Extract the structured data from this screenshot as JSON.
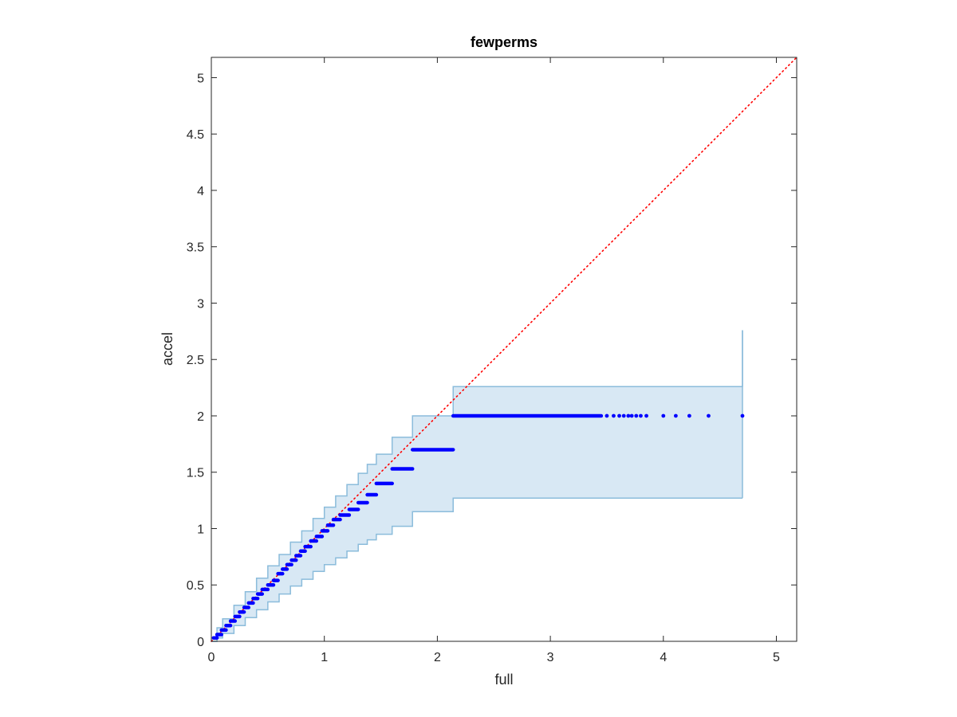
{
  "chart_data": {
    "type": "scatter",
    "title": "fewperms",
    "xlabel": "full",
    "ylabel": "accel",
    "xlim": [
      0,
      5.18
    ],
    "ylim": [
      0,
      5.18
    ],
    "xticks": [
      0,
      1,
      2,
      3,
      4,
      5
    ],
    "xtick_labels": [
      "0",
      "1",
      "2",
      "3",
      "4",
      "5"
    ],
    "yticks": [
      0,
      0.5,
      1,
      1.5,
      2,
      2.5,
      3,
      3.5,
      4,
      4.5,
      5
    ],
    "ytick_labels": [
      "0",
      "0.5",
      "1",
      "1.5",
      "2",
      "2.5",
      "3",
      "3.5",
      "4",
      "4.5",
      "5"
    ],
    "grid": false,
    "reference_line": {
      "type": "identity",
      "style": "dotted",
      "color": "#ff0000"
    },
    "band": {
      "fill": "#d8e8f4",
      "stroke": "#8bbcdb",
      "x": [
        0,
        0.05,
        0.1,
        0.2,
        0.3,
        0.4,
        0.5,
        0.6,
        0.7,
        0.8,
        0.9,
        1.0,
        1.1,
        1.2,
        1.3,
        1.38,
        1.46,
        1.6,
        1.78,
        2.14,
        4.7
      ],
      "upper": [
        0,
        0.12,
        0.2,
        0.32,
        0.44,
        0.56,
        0.67,
        0.77,
        0.88,
        0.98,
        1.09,
        1.19,
        1.29,
        1.39,
        1.49,
        1.57,
        1.66,
        1.81,
        2.0,
        2.26,
        2.76
      ],
      "lower": [
        0,
        0.03,
        0.07,
        0.14,
        0.21,
        0.28,
        0.35,
        0.42,
        0.49,
        0.55,
        0.62,
        0.68,
        0.74,
        0.8,
        0.86,
        0.9,
        0.95,
        1.02,
        1.15,
        1.27,
        1.27
      ]
    },
    "series": [
      {
        "color": "#0000ff",
        "segments": [
          {
            "x_from": 0.02,
            "x_to": 0.05,
            "y": 0.03
          },
          {
            "x_from": 0.05,
            "x_to": 0.09,
            "y": 0.06
          },
          {
            "x_from": 0.09,
            "x_to": 0.13,
            "y": 0.1
          },
          {
            "x_from": 0.13,
            "x_to": 0.17,
            "y": 0.14
          },
          {
            "x_from": 0.17,
            "x_to": 0.21,
            "y": 0.18
          },
          {
            "x_from": 0.21,
            "x_to": 0.25,
            "y": 0.22
          },
          {
            "x_from": 0.25,
            "x_to": 0.29,
            "y": 0.26
          },
          {
            "x_from": 0.29,
            "x_to": 0.33,
            "y": 0.3
          },
          {
            "x_from": 0.33,
            "x_to": 0.37,
            "y": 0.34
          },
          {
            "x_from": 0.37,
            "x_to": 0.41,
            "y": 0.38
          },
          {
            "x_from": 0.41,
            "x_to": 0.45,
            "y": 0.42
          },
          {
            "x_from": 0.45,
            "x_to": 0.5,
            "y": 0.46
          },
          {
            "x_from": 0.5,
            "x_to": 0.55,
            "y": 0.5
          },
          {
            "x_from": 0.55,
            "x_to": 0.59,
            "y": 0.54
          },
          {
            "x_from": 0.59,
            "x_to": 0.63,
            "y": 0.6
          },
          {
            "x_from": 0.63,
            "x_to": 0.67,
            "y": 0.64
          },
          {
            "x_from": 0.67,
            "x_to": 0.71,
            "y": 0.68
          },
          {
            "x_from": 0.71,
            "x_to": 0.75,
            "y": 0.72
          },
          {
            "x_from": 0.75,
            "x_to": 0.79,
            "y": 0.76
          },
          {
            "x_from": 0.79,
            "x_to": 0.83,
            "y": 0.8
          },
          {
            "x_from": 0.83,
            "x_to": 0.88,
            "y": 0.84
          },
          {
            "x_from": 0.88,
            "x_to": 0.93,
            "y": 0.89
          },
          {
            "x_from": 0.93,
            "x_to": 0.98,
            "y": 0.93
          },
          {
            "x_from": 0.98,
            "x_to": 1.03,
            "y": 0.98
          },
          {
            "x_from": 1.03,
            "x_to": 1.08,
            "y": 1.03
          },
          {
            "x_from": 1.08,
            "x_to": 1.14,
            "y": 1.08
          },
          {
            "x_from": 1.14,
            "x_to": 1.22,
            "y": 1.12
          },
          {
            "x_from": 1.22,
            "x_to": 1.3,
            "y": 1.17
          },
          {
            "x_from": 1.3,
            "x_to": 1.38,
            "y": 1.23
          },
          {
            "x_from": 1.38,
            "x_to": 1.46,
            "y": 1.3
          },
          {
            "x_from": 1.46,
            "x_to": 1.6,
            "y": 1.4
          },
          {
            "x_from": 1.6,
            "x_to": 1.78,
            "y": 1.53
          },
          {
            "x_from": 1.78,
            "x_to": 2.14,
            "y": 1.7
          },
          {
            "x_from": 2.14,
            "x_to": 3.45,
            "y": 2.0
          }
        ],
        "points": [
          {
            "x": 3.5,
            "y": 2.0
          },
          {
            "x": 3.56,
            "y": 2.0
          },
          {
            "x": 3.61,
            "y": 2.0
          },
          {
            "x": 3.65,
            "y": 2.0
          },
          {
            "x": 3.69,
            "y": 2.0
          },
          {
            "x": 3.72,
            "y": 2.0
          },
          {
            "x": 3.76,
            "y": 2.0
          },
          {
            "x": 3.8,
            "y": 2.0
          },
          {
            "x": 3.85,
            "y": 2.0
          },
          {
            "x": 4.0,
            "y": 2.0
          },
          {
            "x": 4.11,
            "y": 2.0
          },
          {
            "x": 4.23,
            "y": 2.0
          },
          {
            "x": 4.4,
            "y": 2.0
          },
          {
            "x": 4.7,
            "y": 2.0
          }
        ]
      }
    ]
  }
}
